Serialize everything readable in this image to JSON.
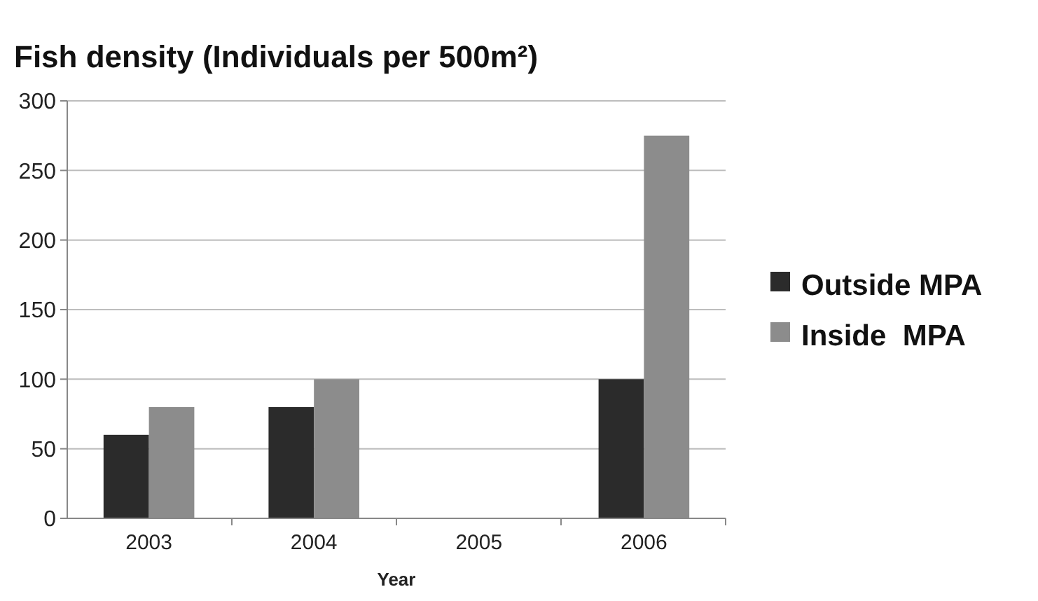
{
  "chart_data": {
    "type": "bar",
    "title": "Fish density (Individuals per 500m²)",
    "xlabel": "Year",
    "categories": [
      "2003",
      "2004",
      "2005",
      "2006"
    ],
    "series": [
      {
        "name": "Outside MPA",
        "color": "#2b2b2b",
        "values": [
          60,
          80,
          null,
          100
        ]
      },
      {
        "name": "Inside  MPA",
        "color": "#8c8c8c",
        "values": [
          80,
          100,
          null,
          275
        ]
      }
    ],
    "ylim": [
      0,
      300
    ],
    "yticks": [
      0,
      50,
      100,
      150,
      200,
      250,
      300
    ],
    "grid": "y",
    "legend": "right"
  }
}
